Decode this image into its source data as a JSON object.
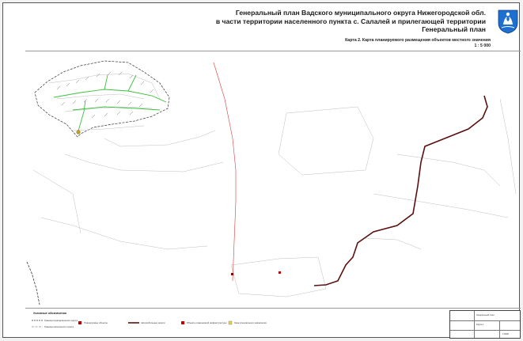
{
  "header": {
    "title_line1": "Генеральный план Вадского муниципального округа Нижегородской обл.",
    "title_line2": "в части территории населенного пункта с. Салалей и прилегающей территории",
    "title_line3": "Генеральный план",
    "map_name": "Карта 2. Карта планируемого размещения объектов местного значения",
    "scale": "1 : 5 000",
    "crest_icon": "coat-of-arms-icon"
  },
  "colors": {
    "road_dark": "#5a1010",
    "road_red": "#d83a3a",
    "green_path": "#3fbf3f",
    "boundary": "#333333",
    "crest_blue": "#1f6fd0"
  },
  "legend": {
    "heading": "Условные обозначения",
    "items": [
      "Граница муниципального округа",
      "Граница населенного пункта",
      "Планируемые объекты",
      "Автомобильные дороги",
      "Объекты инженерной инфраструктуры",
      "Зона специального назначения"
    ]
  },
  "stamp": {
    "line1": "Генеральный план",
    "line2": "Карта 2",
    "line3": "1:5000"
  }
}
